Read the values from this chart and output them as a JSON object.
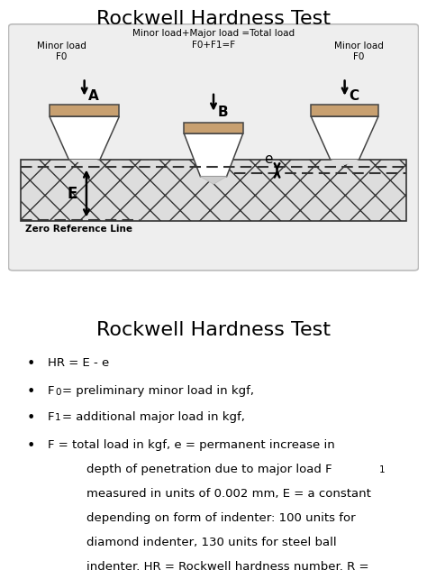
{
  "title1": "Rockwell Hardness Test",
  "title2": "Rockwell Hardness Test",
  "indenter_color": "#c8a070",
  "indenter_edge": "#444444",
  "material_hatch": "x",
  "material_edge": "#333333",
  "dashed_color": "#333333",
  "arrow_color": "#000000",
  "label_A": "A",
  "label_B": "B",
  "label_C": "C",
  "label_E": "E",
  "label_e": "e",
  "label_minor_load_left": "Minor load\nF0",
  "label_center_text_line1": "Minor load+Major load =Total load",
  "label_center_text_line2": "F0+F1=F",
  "label_minor_load_right": "Minor load\nF0",
  "label_zero_ref": "Zero Reference Line",
  "bullet_title": "Rockwell Hardness Test",
  "bullet1": "HR = E - e",
  "bullet2_pre": "F",
  "bullet2_sub": "0",
  "bullet2_post": " = preliminary minor load in kgf,",
  "bullet3_pre": "F",
  "bullet3_sub": "1",
  "bullet3_post": " = additional major load in kgf,",
  "bullet4_pre": "F",
  "bullet4_sub": "",
  "bullet4_post": " = total load in kgf, e = permanent increase in\ndepth of penetration due to major load F",
  "bullet4_sub2": "1",
  "bullet4_post2": "\nmeasured in units of 0.002 mm, E = a constant\ndepending on form of indenter: 100 units for\ndiamond indenter, 130 units for steel ball\nindenter. HR = Rockwell hardness number. R =",
  "bg_color": "#ffffff",
  "diagram_bg": "#eeeeee",
  "text_color": "#000000",
  "font_size_title": 16,
  "font_size_label": 7.5,
  "font_size_bullet": 9.5,
  "font_size_ABC": 11
}
